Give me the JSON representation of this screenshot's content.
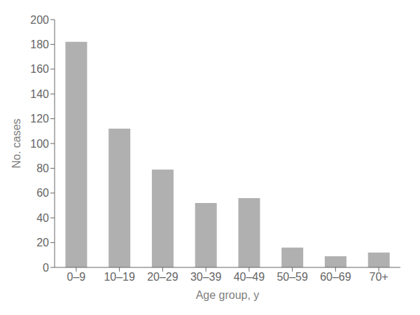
{
  "chart_data": {
    "type": "bar",
    "categories": [
      "0–9",
      "10–19",
      "20–29",
      "30–39",
      "40–49",
      "50–59",
      "60–69",
      "70+"
    ],
    "values": [
      182,
      112,
      79,
      52,
      56,
      16,
      9,
      12
    ],
    "color": "#b0b0b0",
    "xlabel": "Age group, y",
    "ylabel": "No. cases",
    "ylim": [
      0,
      200
    ],
    "yticks": [
      0,
      20,
      40,
      60,
      80,
      100,
      120,
      140,
      160,
      180,
      200
    ],
    "grid": false
  }
}
